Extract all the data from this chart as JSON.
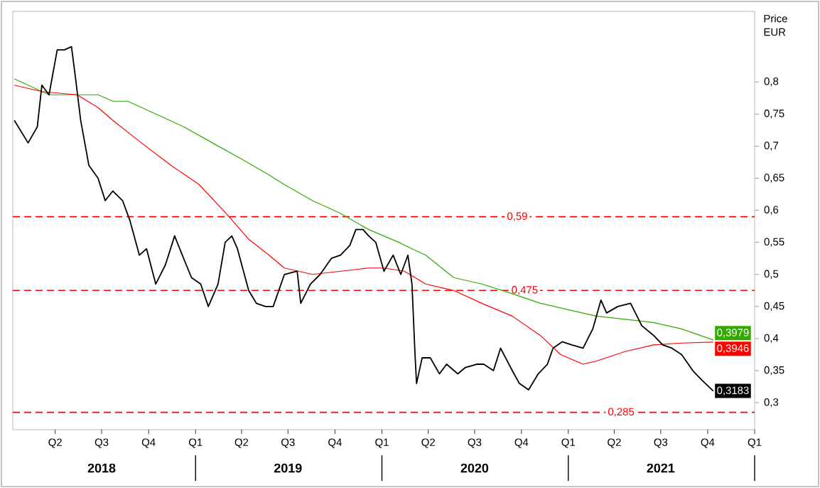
{
  "chart_data": {
    "type": "line",
    "ylabel": "Price EUR",
    "xlim": [
      "2018-01-08",
      "2022-01-01"
    ],
    "xticks": [
      {
        "value": "2018-07-01",
        "label": "2018"
      },
      {
        "value": "2019-01-01",
        "label": null
      },
      {
        "value": "2019-07-01",
        "label": "2019"
      },
      {
        "value": "2020-01-01",
        "label": null
      },
      {
        "value": "2020-07-01",
        "label": "2020"
      },
      {
        "value": "2021-01-01",
        "label": null
      },
      {
        "value": "2021-07-01",
        "label": "2021"
      },
      {
        "value": "2022-01-01",
        "label": null
      }
    ],
    "x2lim": [
      "2018-01-08",
      "2022-01-01"
    ],
    "x2ticks": [
      {
        "value": "2018-04-01",
        "label": "Q2"
      },
      {
        "value": "2018-07-01",
        "label": "Q3"
      },
      {
        "value": "2018-10-01",
        "label": "Q4"
      },
      {
        "value": "2019-01-01",
        "label": "Q1"
      },
      {
        "value": "2019-04-01",
        "label": "Q2"
      },
      {
        "value": "2019-07-01",
        "label": "Q3"
      },
      {
        "value": "2019-10-01",
        "label": "Q4"
      },
      {
        "value": "2020-01-01",
        "label": "Q1"
      },
      {
        "value": "2020-04-01",
        "label": "Q2"
      },
      {
        "value": "2020-07-01",
        "label": "Q3"
      },
      {
        "value": "2020-10-01",
        "label": "Q4"
      },
      {
        "value": "2021-01-01",
        "label": "Q1"
      },
      {
        "value": "2021-04-01",
        "label": "Q2"
      },
      {
        "value": "2021-07-01",
        "label": "Q3"
      },
      {
        "value": "2021-10-01",
        "label": "Q4"
      },
      {
        "value": "2022-01-01",
        "label": "Q1"
      }
    ],
    "ylim": [
      0.258,
      0.91
    ],
    "yticks": [
      {
        "value": 0.3,
        "label": "0,3"
      },
      {
        "value": 0.35,
        "label": "0,35"
      },
      {
        "value": 0.4,
        "label": "0,4"
      },
      {
        "value": 0.45,
        "label": "0,45"
      },
      {
        "value": 0.5,
        "label": "0,5"
      },
      {
        "value": 0.55,
        "label": "0,55"
      },
      {
        "value": 0.6,
        "label": "0,6"
      },
      {
        "value": 0.65,
        "label": "0,65"
      },
      {
        "value": 0.7,
        "label": "0,7"
      },
      {
        "value": 0.75,
        "label": "0,75"
      },
      {
        "value": 0.8,
        "label": "0,8"
      }
    ],
    "ref_lines": [
      {
        "axis": "y",
        "value": 0.59,
        "label": "0,59",
        "color": "#ff0000",
        "line_style": "dashed"
      },
      {
        "axis": "y",
        "value": 0.475,
        "label": "0,475",
        "color": "#ff0000",
        "line_style": "dashed"
      },
      {
        "axis": "y",
        "value": 0.285,
        "label": "0,285",
        "color": "#ff0000",
        "line_style": "dashed"
      }
    ],
    "series": [
      {
        "color": "#33aa00",
        "x": [
          "2018-01-11",
          "2018-02-07",
          "2018-03-20",
          "2018-04-30",
          "2018-06-24",
          "2018-07-23",
          "2018-08-21",
          "2018-10-15",
          "2018-12-09",
          "2019-02-03",
          "2019-04-01",
          "2019-05-25",
          "2019-06-24",
          "2019-08-18",
          "2019-10-12",
          "2019-12-06",
          "2020-02-03",
          "2020-02-29",
          "2020-03-27",
          "2020-05-21",
          "2020-07-15",
          "2020-09-13",
          "2020-11-07",
          "2021-01-01",
          "2021-02-25",
          "2021-04-23",
          "2021-06-17",
          "2021-08-11",
          "2021-10-12"
        ],
        "values": [
          0.805,
          0.795,
          0.78,
          0.78,
          0.78,
          0.77,
          0.77,
          0.75,
          0.73,
          0.705,
          0.68,
          0.655,
          0.64,
          0.615,
          0.595,
          0.57,
          0.55,
          0.54,
          0.53,
          0.495,
          0.485,
          0.47,
          0.455,
          0.445,
          0.435,
          0.43,
          0.425,
          0.415,
          0.3979
        ],
        "value_labels": [
          null,
          null,
          null,
          null,
          null,
          null,
          null,
          null,
          null,
          null,
          null,
          null,
          null,
          null,
          null,
          null,
          null,
          null,
          null,
          null,
          null,
          null,
          null,
          null,
          null,
          null,
          null,
          null,
          "0,3979"
        ]
      },
      {
        "color": "#ff0000",
        "x": [
          "2018-01-11",
          "2018-03-06",
          "2018-05-14",
          "2018-06-24",
          "2018-07-23",
          "2018-09-17",
          "2018-11-14",
          "2019-01-08",
          "2019-03-02",
          "2019-04-15",
          "2019-05-25",
          "2019-06-24",
          "2019-08-18",
          "2019-10-12",
          "2019-12-06",
          "2020-01-05",
          "2020-02-14",
          "2020-03-27",
          "2020-05-21",
          "2020-07-15",
          "2020-09-13",
          "2020-11-07",
          "2020-12-17",
          "2021-01-30",
          "2021-02-25",
          "2021-04-23",
          "2021-06-17",
          "2021-08-11",
          "2021-10-12"
        ],
        "values": [
          0.795,
          0.785,
          0.78,
          0.76,
          0.74,
          0.705,
          0.67,
          0.64,
          0.595,
          0.555,
          0.53,
          0.51,
          0.5,
          0.505,
          0.51,
          0.51,
          0.505,
          0.485,
          0.475,
          0.455,
          0.435,
          0.405,
          0.375,
          0.36,
          0.365,
          0.38,
          0.39,
          0.393,
          0.3946
        ],
        "value_labels": [
          null,
          null,
          null,
          null,
          null,
          null,
          null,
          null,
          null,
          null,
          null,
          null,
          null,
          null,
          null,
          null,
          null,
          null,
          null,
          null,
          null,
          null,
          null,
          null,
          null,
          null,
          null,
          null,
          "0,3946"
        ]
      },
      {
        "color": "#000000",
        "x": [
          "2018-01-11",
          "2018-02-07",
          "2018-02-25",
          "2018-03-06",
          "2018-03-20",
          "2018-04-05",
          "2018-04-19",
          "2018-05-03",
          "2018-05-11",
          "2018-05-21",
          "2018-06-06",
          "2018-06-24",
          "2018-07-08",
          "2018-07-23",
          "2018-08-11",
          "2018-08-25",
          "2018-09-13",
          "2018-09-27",
          "2018-10-15",
          "2018-11-03",
          "2018-11-21",
          "2018-12-06",
          "2018-12-24",
          "2019-01-11",
          "2019-01-26",
          "2019-02-14",
          "2019-02-28",
          "2019-03-13",
          "2019-03-24",
          "2019-04-15",
          "2019-04-30",
          "2019-05-18",
          "2019-06-02",
          "2019-06-24",
          "2019-07-19",
          "2019-07-26",
          "2019-08-14",
          "2019-09-02",
          "2019-09-24",
          "2019-10-12",
          "2019-10-30",
          "2019-11-11",
          "2019-11-25",
          "2019-12-06",
          "2019-12-20",
          "2020-01-05",
          "2020-01-23",
          "2020-02-07",
          "2020-02-21",
          "2020-02-29",
          "2020-03-06",
          "2020-03-09",
          "2020-03-20",
          "2020-04-05",
          "2020-04-23",
          "2020-05-07",
          "2020-05-29",
          "2020-06-13",
          "2020-07-05",
          "2020-07-19",
          "2020-08-07",
          "2020-08-21",
          "2020-09-13",
          "2020-09-27",
          "2020-10-15",
          "2020-11-03",
          "2020-11-21",
          "2020-12-02",
          "2020-12-20",
          "2021-01-08",
          "2021-01-30",
          "2021-02-18",
          "2021-03-06",
          "2021-03-17",
          "2021-04-08",
          "2021-05-03",
          "2021-05-25",
          "2021-06-17",
          "2021-07-05",
          "2021-07-23",
          "2021-08-11",
          "2021-09-02",
          "2021-09-20",
          "2021-10-12"
        ],
        "values": [
          0.74,
          0.705,
          0.73,
          0.795,
          0.78,
          0.85,
          0.85,
          0.855,
          0.805,
          0.74,
          0.67,
          0.65,
          0.615,
          0.63,
          0.615,
          0.585,
          0.53,
          0.54,
          0.485,
          0.515,
          0.56,
          0.53,
          0.495,
          0.485,
          0.45,
          0.485,
          0.55,
          0.56,
          0.54,
          0.475,
          0.455,
          0.45,
          0.45,
          0.5,
          0.505,
          0.455,
          0.485,
          0.5,
          0.525,
          0.53,
          0.545,
          0.57,
          0.57,
          0.56,
          0.55,
          0.505,
          0.53,
          0.5,
          0.53,
          0.485,
          0.375,
          0.33,
          0.37,
          0.37,
          0.345,
          0.36,
          0.345,
          0.355,
          0.36,
          0.36,
          0.35,
          0.385,
          0.35,
          0.33,
          0.32,
          0.345,
          0.36,
          0.385,
          0.395,
          0.39,
          0.385,
          0.415,
          0.46,
          0.44,
          0.45,
          0.455,
          0.42,
          0.405,
          0.39,
          0.385,
          0.375,
          0.35,
          0.335,
          0.3183
        ],
        "value_labels": [
          null,
          null,
          null,
          null,
          null,
          null,
          null,
          null,
          null,
          null,
          null,
          null,
          null,
          null,
          null,
          null,
          null,
          null,
          null,
          null,
          null,
          null,
          null,
          null,
          null,
          null,
          null,
          null,
          null,
          null,
          null,
          null,
          null,
          null,
          null,
          null,
          null,
          null,
          null,
          null,
          null,
          null,
          null,
          null,
          null,
          null,
          null,
          null,
          null,
          null,
          null,
          null,
          null,
          null,
          null,
          null,
          null,
          null,
          null,
          null,
          null,
          null,
          null,
          null,
          null,
          null,
          null,
          null,
          null,
          null,
          null,
          null,
          null,
          null,
          null,
          null,
          null,
          null,
          null,
          null,
          null,
          null,
          null,
          "0,3183"
        ]
      }
    ]
  }
}
